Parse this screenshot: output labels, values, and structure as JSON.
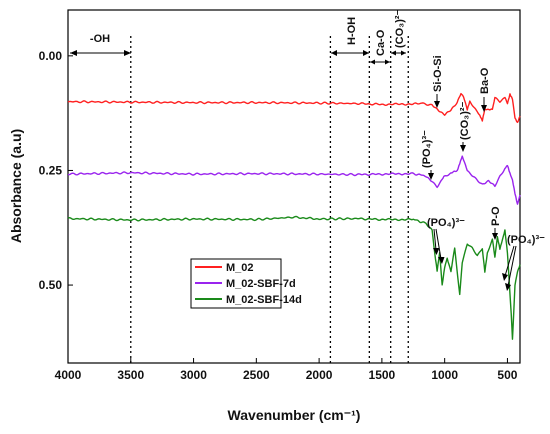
{
  "chart_data": {
    "type": "line",
    "xlabel": "Wavenumber (cm⁻¹)",
    "ylabel": "Absorbance (a.u)",
    "x_reversed": true,
    "y_reversed": true,
    "xlim": [
      4000,
      400
    ],
    "ylim": [
      -0.1,
      0.67
    ],
    "x_ticks": [
      "4000",
      "3500",
      "3000",
      "2500",
      "2000",
      "1500",
      "1000",
      "500"
    ],
    "y_ticks": [
      "0.00",
      "0.25",
      "0.50"
    ],
    "legend_position": "lower-left",
    "series": [
      {
        "name": "M_02",
        "color": "#ff2020",
        "points": [
          [
            4000,
            0.1
          ],
          [
            3500,
            0.101
          ],
          [
            3000,
            0.102
          ],
          [
            2500,
            0.102
          ],
          [
            2000,
            0.103
          ],
          [
            1700,
            0.104
          ],
          [
            1500,
            0.106
          ],
          [
            1250,
            0.105
          ],
          [
            1180,
            0.103
          ],
          [
            1100,
            0.108
          ],
          [
            1050,
            0.118
          ],
          [
            1000,
            0.128
          ],
          [
            950,
            0.119
          ],
          [
            900,
            0.102
          ],
          [
            870,
            0.083
          ],
          [
            850,
            0.09
          ],
          [
            820,
            0.117
          ],
          [
            800,
            0.1
          ],
          [
            760,
            0.114
          ],
          [
            720,
            0.129
          ],
          [
            700,
            0.14
          ],
          [
            680,
            0.115
          ],
          [
            620,
            0.118
          ],
          [
            600,
            0.092
          ],
          [
            560,
            0.1
          ],
          [
            520,
            0.09
          ],
          [
            500,
            0.105
          ],
          [
            480,
            0.085
          ],
          [
            460,
            0.095
          ],
          [
            440,
            0.135
          ],
          [
            420,
            0.145
          ],
          [
            400,
            0.13
          ]
        ]
      },
      {
        "name": "M_02-SBF-7d",
        "color": "#9a24ee",
        "points": [
          [
            4000,
            0.258
          ],
          [
            3500,
            0.255
          ],
          [
            3000,
            0.258
          ],
          [
            2500,
            0.257
          ],
          [
            2000,
            0.258
          ],
          [
            1700,
            0.259
          ],
          [
            1500,
            0.258
          ],
          [
            1250,
            0.257
          ],
          [
            1150,
            0.262
          ],
          [
            1100,
            0.275
          ],
          [
            1060,
            0.285
          ],
          [
            1020,
            0.27
          ],
          [
            1000,
            0.262
          ],
          [
            960,
            0.258
          ],
          [
            900,
            0.25
          ],
          [
            880,
            0.235
          ],
          [
            860,
            0.22
          ],
          [
            850,
            0.225
          ],
          [
            820,
            0.25
          ],
          [
            780,
            0.262
          ],
          [
            700,
            0.28
          ],
          [
            650,
            0.272
          ],
          [
            600,
            0.285
          ],
          [
            560,
            0.262
          ],
          [
            520,
            0.246
          ],
          [
            500,
            0.238
          ],
          [
            480,
            0.255
          ],
          [
            460,
            0.27
          ],
          [
            440,
            0.3
          ],
          [
            420,
            0.325
          ],
          [
            400,
            0.305
          ]
        ]
      },
      {
        "name": "M_02-SBF-14d",
        "color": "#1a8a1a",
        "points": [
          [
            4000,
            0.355
          ],
          [
            3500,
            0.358
          ],
          [
            3000,
            0.356
          ],
          [
            2500,
            0.357
          ],
          [
            2200,
            0.352
          ],
          [
            2000,
            0.356
          ],
          [
            1700,
            0.355
          ],
          [
            1500,
            0.357
          ],
          [
            1250,
            0.357
          ],
          [
            1150,
            0.365
          ],
          [
            1100,
            0.38
          ],
          [
            1080,
            0.43
          ],
          [
            1060,
            0.47
          ],
          [
            1040,
            0.43
          ],
          [
            1020,
            0.5
          ],
          [
            1000,
            0.46
          ],
          [
            980,
            0.44
          ],
          [
            950,
            0.47
          ],
          [
            920,
            0.42
          ],
          [
            880,
            0.52
          ],
          [
            860,
            0.45
          ],
          [
            820,
            0.41
          ],
          [
            780,
            0.42
          ],
          [
            740,
            0.435
          ],
          [
            700,
            0.42
          ],
          [
            680,
            0.47
          ],
          [
            660,
            0.43
          ],
          [
            620,
            0.4
          ],
          [
            600,
            0.44
          ],
          [
            580,
            0.395
          ],
          [
            560,
            0.42
          ],
          [
            540,
            0.4
          ],
          [
            520,
            0.38
          ],
          [
            500,
            0.43
          ],
          [
            480,
            0.52
          ],
          [
            470,
            0.56
          ],
          [
            460,
            0.62
          ],
          [
            450,
            0.56
          ],
          [
            440,
            0.5
          ],
          [
            420,
            0.47
          ],
          [
            400,
            0.455
          ]
        ]
      }
    ],
    "vlines": [
      3500,
      1910,
      1600,
      1430,
      1290
    ],
    "annotations": {
      "oh": "-OH",
      "hoh": "H-OH",
      "cao": "Ca-O",
      "co3_top": "(CO₃)²⁻",
      "siosi": "Si-O-Si",
      "bao": "Ba-O",
      "co3_mid": "(CO₃)²⁻",
      "po4_mid": "(PO₄)³⁻",
      "po": "P-O",
      "po4_low": "(PO₄)³⁻",
      "po4_right": "(PO₄)³⁻"
    }
  }
}
